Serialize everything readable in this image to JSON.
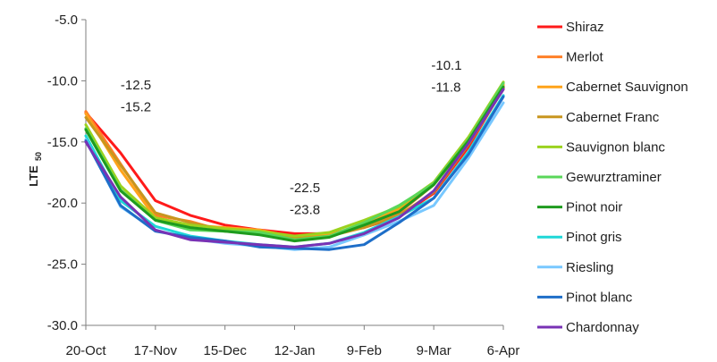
{
  "chart_data": {
    "type": "line",
    "title": "",
    "xlabel": "",
    "ylabel": "LTE",
    "ylabel_sub": "50",
    "x_ticks": [
      "20-Oct",
      "17-Nov",
      "15-Dec",
      "12-Jan",
      "9-Feb",
      "9-Mar",
      "6-Apr"
    ],
    "xlim": [
      "2000-10-20",
      "2001-04-06"
    ],
    "ylim": [
      -30,
      -5
    ],
    "y_ticks": [
      "-5.0",
      "-10.0",
      "-15.0",
      "-20.0",
      "-25.0",
      "-30.0"
    ],
    "grid": false,
    "legend_position": "right",
    "annotations": [
      {
        "text": "-12.5",
        "x": "2000-11-03",
        "y": -10.7
      },
      {
        "text": "-15.2",
        "x": "2000-11-03",
        "y": -12.5
      },
      {
        "text": "-22.5",
        "x": "2001-01-10",
        "y": -19.1
      },
      {
        "text": "-23.8",
        "x": "2001-01-10",
        "y": -20.9
      },
      {
        "text": "-10.1",
        "x": "2001-03-08",
        "y": -9.1
      },
      {
        "text": "-11.8",
        "x": "2001-03-08",
        "y": -10.9
      }
    ],
    "x": [
      "2000-10-20",
      "2000-11-03",
      "2000-11-17",
      "2000-12-01",
      "2000-12-15",
      "2000-12-29",
      "2001-01-12",
      "2001-01-26",
      "2001-02-09",
      "2001-02-23",
      "2001-03-09",
      "2001-03-23",
      "2001-04-06"
    ],
    "series": [
      {
        "name": "Shiraz",
        "color": "#ff1a1a",
        "values": [
          -12.6,
          -15.9,
          -19.8,
          -21.0,
          -21.8,
          -22.2,
          -22.5,
          -22.5,
          -22.0,
          -21.1,
          -19.2,
          -15.4,
          -10.6
        ]
      },
      {
        "name": "Merlot",
        "color": "#ff7f27",
        "values": [
          -12.5,
          -16.8,
          -21.0,
          -21.5,
          -22.3,
          -22.5,
          -22.9,
          -22.6,
          -21.8,
          -20.8,
          -18.5,
          -14.9,
          -10.4
        ]
      },
      {
        "name": "Cabernet Sauvignon",
        "color": "#ffa31a",
        "values": [
          -12.7,
          -17.3,
          -21.2,
          -21.8,
          -22.0,
          -22.2,
          -22.8,
          -22.6,
          -21.7,
          -20.5,
          -18.4,
          -14.7,
          -10.3
        ]
      },
      {
        "name": "Cabernet Franc",
        "color": "#c8961e",
        "values": [
          -13.0,
          -16.9,
          -20.8,
          -21.6,
          -22.2,
          -22.4,
          -22.9,
          -22.7,
          -22.0,
          -21.0,
          -19.1,
          -15.2,
          -10.7
        ]
      },
      {
        "name": "Sauvignon blanc",
        "color": "#9bd21e",
        "values": [
          -13.6,
          -18.6,
          -21.2,
          -21.8,
          -22.1,
          -22.3,
          -22.7,
          -22.4,
          -21.4,
          -20.3,
          -18.3,
          -14.6,
          -10.1
        ]
      },
      {
        "name": "Gewurztraminer",
        "color": "#5ad75a",
        "values": [
          -13.9,
          -18.9,
          -21.4,
          -22.2,
          -22.3,
          -22.4,
          -23.0,
          -22.7,
          -21.6,
          -20.2,
          -18.4,
          -14.8,
          -10.2
        ]
      },
      {
        "name": "Pinot noir",
        "color": "#1e9b1e",
        "values": [
          -14.0,
          -19.0,
          -21.4,
          -22.0,
          -22.3,
          -22.6,
          -23.1,
          -22.8,
          -21.8,
          -20.7,
          -18.5,
          -14.9,
          -10.5
        ]
      },
      {
        "name": "Pinot gris",
        "color": "#1ed7d7",
        "values": [
          -14.5,
          -19.8,
          -21.9,
          -22.7,
          -23.1,
          -23.4,
          -23.6,
          -23.3,
          -22.4,
          -21.1,
          -19.6,
          -15.8,
          -11.2
        ]
      },
      {
        "name": "Riesling",
        "color": "#78c8ff",
        "values": [
          -14.8,
          -20.3,
          -22.2,
          -22.9,
          -23.3,
          -23.5,
          -23.8,
          -23.6,
          -22.6,
          -21.5,
          -20.2,
          -16.3,
          -11.8
        ]
      },
      {
        "name": "Pinot blanc",
        "color": "#1e6ec8",
        "values": [
          -14.9,
          -20.2,
          -22.3,
          -22.8,
          -23.1,
          -23.6,
          -23.7,
          -23.8,
          -23.4,
          -21.6,
          -19.6,
          -16.0,
          -11.3
        ]
      },
      {
        "name": "Chardonnay",
        "color": "#7832b4",
        "values": [
          -15.0,
          -19.5,
          -22.2,
          -23.0,
          -23.2,
          -23.4,
          -23.6,
          -23.3,
          -22.5,
          -21.2,
          -19.0,
          -15.1,
          -10.7
        ]
      }
    ]
  }
}
